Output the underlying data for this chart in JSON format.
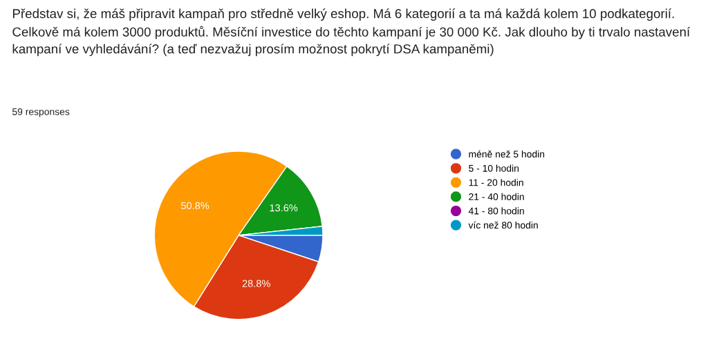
{
  "chart_data": {
    "type": "pie",
    "title": "Představ si, že máš připravit kampaň pro středně velký eshop. Má 6 kategorií a ta má každá kolem 10 podkategorií. Celkově má kolem 3000 produktů. Měsíční investice do těchto kampaní je 30 000 Kč. Jak dlouho by ti trvalo nastavení kampaní ve vyhledávání? (a teď nezvažuj prosím možnost pokrytí DSA kampaněmi)",
    "subtitle": "59 responses",
    "categories": [
      "méně než 5 hodin",
      "5 - 10 hodin",
      "11 - 20 hodin",
      "21 - 40 hodin",
      "41 - 80 hodin",
      "víc než 80 hodin"
    ],
    "values": [
      5.1,
      28.8,
      50.8,
      13.6,
      0,
      1.7
    ],
    "colors": [
      "#3366cc",
      "#dc3912",
      "#ff9900",
      "#109618",
      "#990099",
      "#0099c6"
    ],
    "value_labels": [
      null,
      "28.8%",
      "50.8%",
      "13.6%",
      null,
      null
    ],
    "legend": "right"
  }
}
